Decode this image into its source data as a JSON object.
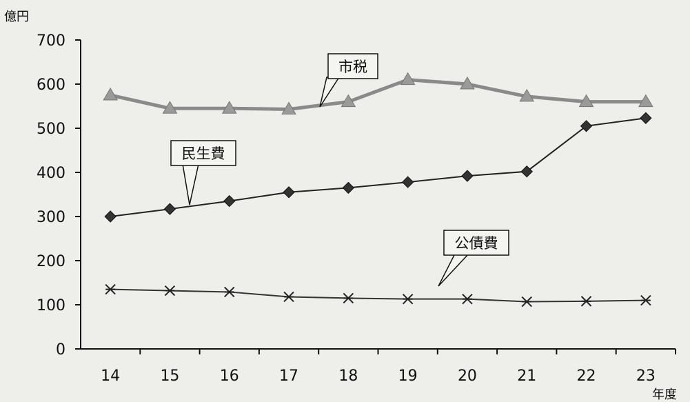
{
  "chart_data": {
    "type": "line",
    "title": "",
    "y_unit_label": "億円",
    "x_unit_label": "年度",
    "categories": [
      "14",
      "15",
      "16",
      "17",
      "18",
      "19",
      "20",
      "21",
      "22",
      "23"
    ],
    "ylim": [
      0,
      700
    ],
    "yticks": [
      0,
      100,
      200,
      300,
      400,
      500,
      600,
      700
    ],
    "grid": false,
    "series": [
      {
        "name": "市税",
        "marker": "triangle",
        "line_color": "#8a8a8a",
        "marker_color": "#9a9a9a",
        "values": [
          575,
          545,
          545,
          543,
          560,
          610,
          600,
          572,
          560,
          560
        ]
      },
      {
        "name": "民生費",
        "marker": "diamond",
        "line_color": "#222222",
        "marker_color": "#333333",
        "values": [
          300,
          317,
          335,
          355,
          365,
          378,
          392,
          402,
          505,
          523
        ]
      },
      {
        "name": "公債費",
        "marker": "asterisk",
        "line_color": "#333333",
        "marker_color": "#222222",
        "values": [
          135,
          132,
          129,
          118,
          115,
          113,
          113,
          107,
          108,
          110
        ]
      }
    ]
  }
}
